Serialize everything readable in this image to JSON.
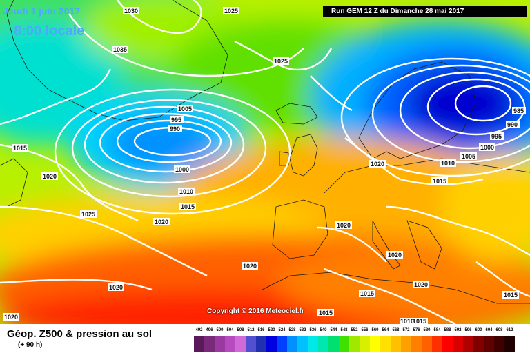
{
  "header": {
    "date_line": "Jeudi 1 juin 2017",
    "time_line": "8:00 locale",
    "run_info": "Run GEM 12 Z du Dimanche 28 mai 2017"
  },
  "footer": {
    "parameter_title": "Géop. Z500 & pression au sol",
    "forecast_hour": "(+ 90 h)",
    "copyright": "Copyright © 2016 Meteociel.fr"
  },
  "legend": {
    "values": [
      "492",
      "496",
      "500",
      "504",
      "508",
      "512",
      "516",
      "520",
      "524",
      "528",
      "532",
      "536",
      "540",
      "544",
      "548",
      "552",
      "556",
      "560",
      "564",
      "568",
      "572",
      "576",
      "580",
      "584",
      "588",
      "592",
      "596",
      "600",
      "604",
      "608",
      "612"
    ],
    "colors": [
      "#5a1a5a",
      "#7a2a7a",
      "#9a3aa0",
      "#b84ac0",
      "#d06ad8",
      "#5050d0",
      "#2030b0",
      "#0000e0",
      "#0040ff",
      "#0090ff",
      "#00c0ff",
      "#00e8e8",
      "#00e8b0",
      "#00e070",
      "#40e000",
      "#a0e800",
      "#d8f000",
      "#ffff00",
      "#ffe000",
      "#ffc000",
      "#ffa000",
      "#ff8000",
      "#ff6000",
      "#ff3000",
      "#ff0000",
      "#d80000",
      "#b00000",
      "#800000",
      "#600000",
      "#400000",
      "#200000"
    ]
  },
  "isobar_labels": [
    "1030",
    "1025",
    "1035",
    "1025",
    "1005",
    "995",
    "990",
    "1000",
    "1010",
    "1015",
    "1020",
    "1015",
    "1025",
    "1020",
    "1020",
    "1020",
    "1015",
    "1020",
    "1015",
    "1010",
    "1005",
    "1000",
    "995",
    "990",
    "985",
    "1015",
    "1020",
    "1020",
    "1015",
    "1010",
    "1015",
    "1020",
    "1020"
  ]
}
